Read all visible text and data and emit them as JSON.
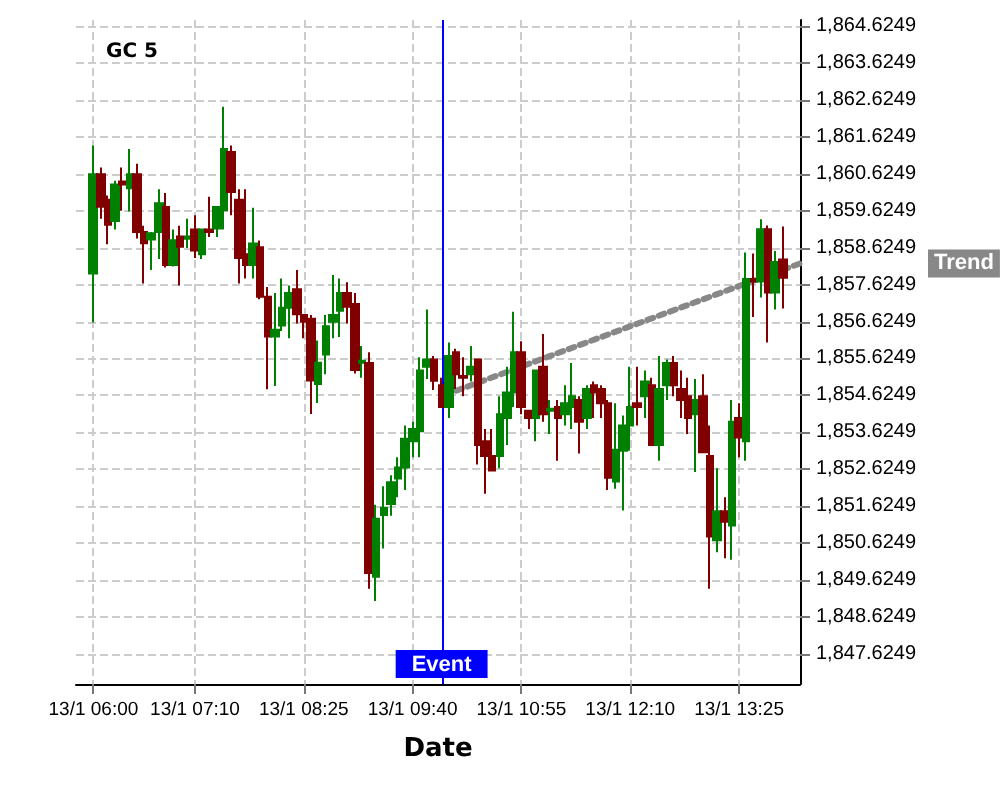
{
  "chart_data": {
    "type": "candlestick",
    "title": "GC 5",
    "xlabel": "Date",
    "xlim": [
      "--01-13T05:48",
      "--01-13T14:07"
    ],
    "ylim": [
      1846.8,
      1864.8
    ],
    "xticks": [
      {
        "value": "--01-13T06:00",
        "label": "13/1 06:00"
      },
      {
        "value": "--01-13T07:10",
        "label": "13/1 07:10"
      },
      {
        "value": "--01-13T08:25",
        "label": "13/1 08:25"
      },
      {
        "value": "--01-13T09:40",
        "label": "13/1 09:40"
      },
      {
        "value": "--01-13T10:55",
        "label": "13/1 10:55"
      },
      {
        "value": "--01-13T12:10",
        "label": "13/1 12:10"
      },
      {
        "value": "--01-13T13:25",
        "label": "13/1 13:25"
      }
    ],
    "yticks": [
      {
        "value": 1847.6249,
        "label": "1,847.6249"
      },
      {
        "value": 1848.6249,
        "label": "1,848.6249"
      },
      {
        "value": 1849.6249,
        "label": "1,849.6249"
      },
      {
        "value": 1850.6249,
        "label": "1,850.6249"
      },
      {
        "value": 1851.6249,
        "label": "1,851.6249"
      },
      {
        "value": 1852.6249,
        "label": "1,852.6249"
      },
      {
        "value": 1853.6249,
        "label": "1,853.6249"
      },
      {
        "value": 1854.6249,
        "label": "1,854.6249"
      },
      {
        "value": 1855.6249,
        "label": "1,855.6249"
      },
      {
        "value": 1856.6249,
        "label": "1,856.6249"
      },
      {
        "value": 1857.6249,
        "label": "1,857.6249"
      },
      {
        "value": 1858.6249,
        "label": "1,858.6249"
      },
      {
        "value": 1859.6249,
        "label": "1,859.6249"
      },
      {
        "value": 1860.6249,
        "label": "1,860.6249"
      },
      {
        "value": 1861.6249,
        "label": "1,861.6249"
      },
      {
        "value": 1862.6249,
        "label": "1,862.6249"
      },
      {
        "value": 1863.6249,
        "label": "1,863.6249"
      },
      {
        "value": 1864.6249,
        "label": "1,864.6249"
      }
    ],
    "grid": true,
    "ref_lines": [
      {
        "axis": "x",
        "value": "--01-13T10:00",
        "label": "Event",
        "color": "#0000ff"
      }
    ],
    "series": [
      {
        "x": [
          "--01-13T06:00",
          "--01-13T06:05",
          "--01-13T06:10",
          "--01-13T06:15",
          "--01-13T06:20",
          "--01-13T06:25",
          "--01-13T06:30",
          "--01-13T06:35",
          "--01-13T06:40",
          "--01-13T06:45",
          "--01-13T06:50",
          "--01-13T06:55",
          "--01-13T07:00",
          "--01-13T07:05",
          "--01-13T07:10",
          "--01-13T07:15",
          "--01-13T07:20",
          "--01-13T07:25",
          "--01-13T07:30",
          "--01-13T07:35",
          "--01-13T07:40",
          "--01-13T07:45",
          "--01-13T07:50",
          "--01-13T07:55",
          "--01-13T08:00",
          "--01-13T08:05",
          "--01-13T08:10",
          "--01-13T08:15",
          "--01-13T08:20",
          "--01-13T08:25",
          "--01-13T08:30",
          "--01-13T08:35",
          "--01-13T08:40",
          "--01-13T08:45",
          "--01-13T08:50",
          "--01-13T08:55",
          "--01-13T09:00",
          "--01-13T09:05",
          "--01-13T09:10",
          "--01-13T09:15",
          "--01-13T09:20",
          "--01-13T09:25",
          "--01-13T09:30",
          "--01-13T09:35",
          "--01-13T09:40",
          "--01-13T09:45",
          "--01-13T09:50",
          "--01-13T09:55",
          "--01-13T10:00",
          "--01-13T10:05",
          "--01-13T10:10",
          "--01-13T10:15",
          "--01-13T10:20",
          "--01-13T10:25",
          "--01-13T10:30",
          "--01-13T10:35",
          "--01-13T10:40",
          "--01-13T10:45",
          "--01-13T10:50",
          "--01-13T10:55",
          "--01-13T11:00",
          "--01-13T11:05",
          "--01-13T11:10",
          "--01-13T11:15",
          "--01-13T11:20",
          "--01-13T11:25",
          "--01-13T11:30",
          "--01-13T11:35",
          "--01-13T11:40",
          "--01-13T11:45",
          "--01-13T11:50",
          "--01-13T11:55",
          "--01-13T12:00",
          "--01-13T12:05",
          "--01-13T12:10",
          "--01-13T12:15",
          "--01-13T12:20",
          "--01-13T12:25",
          "--01-13T12:30",
          "--01-13T12:35",
          "--01-13T12:40",
          "--01-13T12:45",
          "--01-13T12:50",
          "--01-13T12:55",
          "--01-13T13:00",
          "--01-13T13:05",
          "--01-13T13:10",
          "--01-13T13:15",
          "--01-13T13:20",
          "--01-13T13:25",
          "--01-13T13:30",
          "--01-13T13:35",
          "--01-13T13:40",
          "--01-13T13:45",
          "--01-13T13:50",
          "--01-13T13:55"
        ],
        "ohlc": [
          [
            1857.93,
            1861.4,
            1856.6,
            1860.62
          ],
          [
            1860.62,
            1860.8,
            1859.41,
            1859.74
          ],
          [
            1859.93,
            1860.04,
            1858.72,
            1859.25
          ],
          [
            1859.35,
            1860.44,
            1859.12,
            1860.34
          ],
          [
            1860.42,
            1860.8,
            1859.63,
            1860.34
          ],
          [
            1860.24,
            1861.3,
            1859.61,
            1860.62
          ],
          [
            1860.62,
            1860.9,
            1858.88,
            1859.05
          ],
          [
            1859.05,
            1859.22,
            1857.66,
            1858.75
          ],
          [
            1858.85,
            1859.05,
            1858.02,
            1859.02
          ],
          [
            1859.05,
            1860.21,
            1858.32,
            1859.83
          ],
          [
            1859.73,
            1860.11,
            1858.09,
            1858.16
          ],
          [
            1858.16,
            1859.12,
            1858.12,
            1858.83
          ],
          [
            1858.93,
            1859.22,
            1857.6,
            1858.65
          ],
          [
            1858.87,
            1859.41,
            1858.62,
            1858.93
          ],
          [
            1859.12,
            1859.51,
            1858.35,
            1858.55
          ],
          [
            1858.45,
            1859.15,
            1858.32,
            1859.12
          ],
          [
            1859.12,
            1860.01,
            1858.92,
            1859.05
          ],
          [
            1859.15,
            1859.74,
            1858.92,
            1859.73
          ],
          [
            1859.64,
            1862.45,
            1859.12,
            1861.3
          ],
          [
            1861.22,
            1861.4,
            1859.51,
            1860.14
          ],
          [
            1859.93,
            1860.21,
            1857.66,
            1858.35
          ],
          [
            1858.45,
            1860.21,
            1857.79,
            1858.16
          ],
          [
            1858.16,
            1859.71,
            1857.79,
            1858.74
          ],
          [
            1858.64,
            1858.82,
            1857.23,
            1857.3
          ],
          [
            1857.3,
            1857.56,
            1854.79,
            1856.22
          ],
          [
            1856.22,
            1857.4,
            1854.88,
            1856.4
          ],
          [
            1856.52,
            1857.79,
            1856.37,
            1857.0
          ],
          [
            1857.0,
            1857.6,
            1856.17,
            1857.4
          ],
          [
            1857.5,
            1858.02,
            1856.57,
            1856.82
          ],
          [
            1856.8,
            1856.8,
            1856.17,
            1856.62
          ],
          [
            1856.7,
            1856.8,
            1854.12,
            1855.03
          ],
          [
            1854.93,
            1856.11,
            1854.42,
            1855.51
          ],
          [
            1855.73,
            1856.8,
            1855.2,
            1856.5
          ],
          [
            1856.62,
            1857.89,
            1856.17,
            1856.8
          ],
          [
            1856.92,
            1857.79,
            1856.21,
            1857.4
          ],
          [
            1857.4,
            1857.69,
            1856.57,
            1857.03
          ],
          [
            1857.1,
            1857.4,
            1855.22,
            1855.31
          ],
          [
            1855.51,
            1855.96,
            1855.1,
            1855.56
          ],
          [
            1855.5,
            1855.79,
            1849.38,
            1849.81
          ],
          [
            1849.71,
            1851.66,
            1849.05,
            1851.28
          ],
          [
            1851.38,
            1852.16,
            1850.47,
            1851.58
          ],
          [
            1851.68,
            1852.46,
            1851.36,
            1852.27
          ],
          [
            1852.37,
            1852.95,
            1851.86,
            1852.67
          ],
          [
            1852.67,
            1853.81,
            1852.06,
            1853.45
          ],
          [
            1853.38,
            1853.91,
            1852.95,
            1853.71
          ],
          [
            1853.65,
            1855.66,
            1852.95,
            1855.3
          ],
          [
            1855.4,
            1856.95,
            1855.07,
            1855.6
          ],
          [
            1855.6,
            1855.69,
            1854.77,
            1855.02
          ],
          [
            1854.9,
            1855.1,
            1854.31,
            1854.31
          ],
          [
            1854.31,
            1856.06,
            1854.01,
            1855.69
          ],
          [
            1855.79,
            1855.89,
            1854.8,
            1855.2
          ],
          [
            1855.15,
            1855.66,
            1854.6,
            1855.1
          ],
          [
            1855.2,
            1855.96,
            1855.0,
            1855.4
          ],
          [
            1855.6,
            1855.6,
            1852.75,
            1853.28
          ],
          [
            1853.38,
            1853.71,
            1851.96,
            1852.98
          ],
          [
            1852.98,
            1853.71,
            1852.59,
            1852.59
          ],
          [
            1852.98,
            1854.6,
            1852.65,
            1854.11
          ],
          [
            1854.01,
            1855.4,
            1853.28,
            1854.7
          ],
          [
            1854.7,
            1856.89,
            1854.31,
            1855.79
          ],
          [
            1855.79,
            1856.09,
            1854.11,
            1854.31
          ],
          [
            1854.21,
            1854.21,
            1853.71,
            1854.01
          ],
          [
            1854.01,
            1855.3,
            1853.38,
            1855.3
          ],
          [
            1855.4,
            1856.29,
            1853.91,
            1854.11
          ],
          [
            1854.21,
            1854.5,
            1853.58,
            1854.26
          ],
          [
            1854.31,
            1854.5,
            1852.85,
            1854.01
          ],
          [
            1854.11,
            1854.9,
            1853.81,
            1854.41
          ],
          [
            1854.31,
            1855.5,
            1853.71,
            1854.6
          ],
          [
            1854.5,
            1854.6,
            1853.05,
            1853.91
          ],
          [
            1854.01,
            1854.9,
            1853.71,
            1854.8
          ],
          [
            1854.9,
            1855.0,
            1854.01,
            1854.7
          ],
          [
            1854.8,
            1854.9,
            1854.01,
            1854.41
          ],
          [
            1854.41,
            1854.5,
            1852.06,
            1852.39
          ],
          [
            1852.29,
            1854.41,
            1852.09,
            1853.15
          ],
          [
            1853.12,
            1854.08,
            1851.5,
            1853.81
          ],
          [
            1853.81,
            1855.4,
            1853.12,
            1854.31
          ],
          [
            1854.41,
            1855.4,
            1853.81,
            1854.31
          ],
          [
            1854.6,
            1855.3,
            1854.01,
            1855.0
          ],
          [
            1854.9,
            1855.1,
            1853.28,
            1853.28
          ],
          [
            1853.28,
            1855.69,
            1852.85,
            1854.8
          ],
          [
            1854.9,
            1855.6,
            1854.5,
            1855.5
          ],
          [
            1855.5,
            1855.69,
            1854.6,
            1854.9
          ],
          [
            1854.8,
            1855.3,
            1854.01,
            1854.5
          ],
          [
            1854.6,
            1855.1,
            1853.58,
            1854.01
          ],
          [
            1854.11,
            1855.07,
            1852.55,
            1854.5
          ],
          [
            1854.6,
            1855.2,
            1853.08,
            1853.08
          ],
          [
            1852.98,
            1853.81,
            1849.38,
            1850.8
          ],
          [
            1850.7,
            1852.65,
            1850.37,
            1851.48
          ],
          [
            1851.48,
            1851.86,
            1850.21,
            1851.2
          ],
          [
            1851.1,
            1854.5,
            1850.17,
            1853.91
          ],
          [
            1854.01,
            1854.41,
            1852.95,
            1853.48
          ],
          [
            1853.38,
            1858.5,
            1852.85,
            1857.78
          ],
          [
            1857.78,
            1858.47,
            1856.75,
            1857.71
          ],
          [
            1857.71,
            1859.4,
            1857.28,
            1859.13
          ],
          [
            1859.13,
            1859.23,
            1856.06,
            1857.41
          ],
          [
            1857.41,
            1858.54,
            1856.95,
            1858.24
          ],
          [
            1858.31,
            1859.2,
            1856.98,
            1857.81
          ]
        ],
        "colors": [
          "#008000",
          "#800000",
          "#800000",
          "#008000",
          "#800000",
          "#008000",
          "#800000",
          "#800000",
          "#008000",
          "#008000",
          "#800000",
          "#008000",
          "#800000",
          "#008000",
          "#800000",
          "#008000",
          "#800000",
          "#008000",
          "#008000",
          "#800000",
          "#800000",
          "#800000",
          "#008000",
          "#800000",
          "#800000",
          "#008000",
          "#008000",
          "#008000",
          "#800000",
          "#800000",
          "#800000",
          "#008000",
          "#008000",
          "#008000",
          "#008000",
          "#800000",
          "#800000",
          "#008000",
          "#800000",
          "#008000",
          "#008000",
          "#008000",
          "#008000",
          "#008000",
          "#008000",
          "#008000",
          "#008000",
          "#800000",
          "#800000",
          "#008000",
          "#800000",
          "#800000",
          "#008000",
          "#800000",
          "#800000",
          "#800000",
          "#008000",
          "#008000",
          "#008000",
          "#800000",
          "#800000",
          "#008000",
          "#800000",
          "#008000",
          "#800000",
          "#008000",
          "#008000",
          "#800000",
          "#008000",
          "#800000",
          "#800000",
          "#800000",
          "#008000",
          "#008000",
          "#008000",
          "#800000",
          "#008000",
          "#800000",
          "#008000",
          "#008000",
          "#800000",
          "#800000",
          "#800000",
          "#008000",
          "#800000",
          "#800000",
          "#008000",
          "#800000",
          "#008000",
          "#800000",
          "#008000",
          "#800000",
          "#008000",
          "#800000",
          "#008000",
          "#800000"
        ]
      },
      {
        "type": "line",
        "name": "Trend",
        "x": [
          "--01-13T10:10",
          "--01-13T14:07"
        ],
        "values": [
          1854.75,
          1858.2
        ],
        "color": "#888888",
        "line_style": "dotted",
        "marker": "none"
      }
    ]
  }
}
